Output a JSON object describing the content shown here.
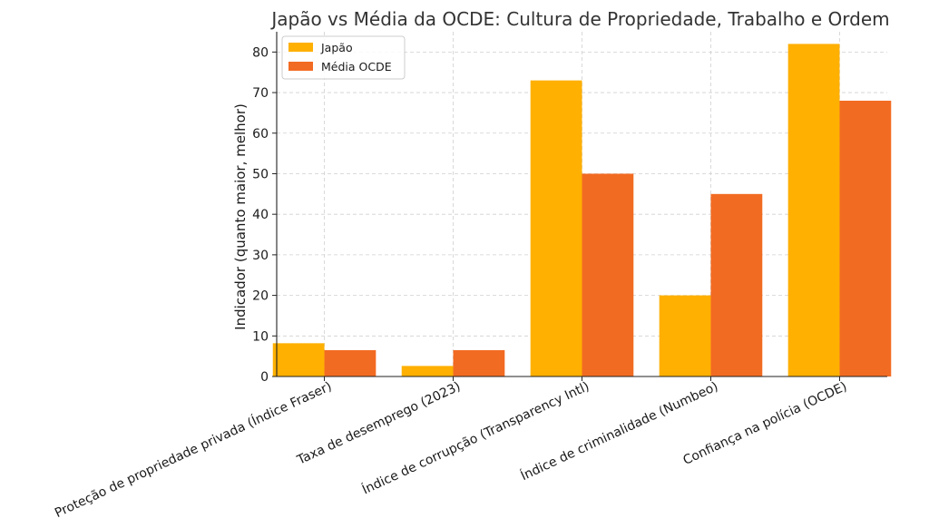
{
  "chart_data": {
    "type": "bar",
    "title": "Japão vs Média da OCDE: Cultura de Propriedade, Trabalho e Ordem",
    "xlabel": "",
    "ylabel": "Indicador (quanto maior, melhor)",
    "categories": [
      "Proteção de propriedade privada (Índice Fraser)",
      "Taxa de desemprego (2023)",
      "Índice de corrupção (Transparency Intl)",
      "Índice de criminalidade (Numbeo)",
      "Confiança na polícia (OCDE)"
    ],
    "series": [
      {
        "name": "Japão",
        "color": "#FFB000",
        "values": [
          8.2,
          2.6,
          73,
          20,
          82
        ]
      },
      {
        "name": "Média OCDE",
        "color": "#F26B22",
        "values": [
          6.5,
          6.5,
          50,
          45,
          68
        ]
      }
    ],
    "ylim": [
      0,
      85
    ],
    "yticks": [
      0,
      10,
      20,
      30,
      40,
      50,
      60,
      70,
      80
    ],
    "grid": true,
    "legend_position": "top-left"
  }
}
